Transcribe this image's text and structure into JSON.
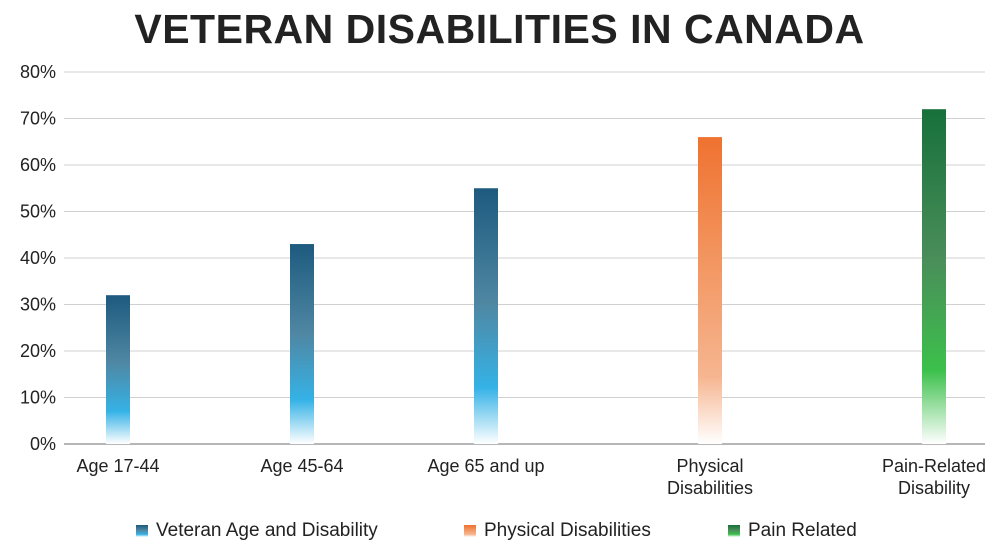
{
  "chart_data": {
    "type": "bar",
    "title": "VETERAN DISABILITIES IN CANADA",
    "xlabel": "",
    "ylabel": "",
    "ylim": [
      0,
      80
    ],
    "yticks": [
      "0%",
      "10%",
      "20%",
      "30%",
      "40%",
      "50%",
      "60%",
      "70%",
      "80%"
    ],
    "grid": true,
    "legend_position": "bottom",
    "categories": [
      [
        "Age 17-44"
      ],
      [
        "Age 45-64"
      ],
      [
        "Age 65 and up"
      ],
      [
        "Physical",
        "Disabilities"
      ],
      [
        "Pain-Related",
        "Disability"
      ]
    ],
    "bars": [
      {
        "category_index": 0,
        "value": 32,
        "series_index": 0
      },
      {
        "category_index": 1,
        "value": 43,
        "series_index": 0
      },
      {
        "category_index": 2,
        "value": 55,
        "series_index": 0
      },
      {
        "category_index": 3,
        "value": 66,
        "series_index": 1
      },
      {
        "category_index": 4,
        "value": 72,
        "series_index": 2
      }
    ],
    "series": [
      {
        "name": "Veteran Age and Disability",
        "color_top": "#1d5a7e",
        "color_mid": "#4f87a3",
        "color_light": "#35b2e6"
      },
      {
        "name": "Physical Disabilities",
        "color_top": "#ef7230",
        "color_mid": "#f39a66",
        "color_light": "#f6b590"
      },
      {
        "name": "Pain Related",
        "color_top": "#17703a",
        "color_mid": "#4a8e5a",
        "color_light": "#3cc04b"
      }
    ]
  }
}
